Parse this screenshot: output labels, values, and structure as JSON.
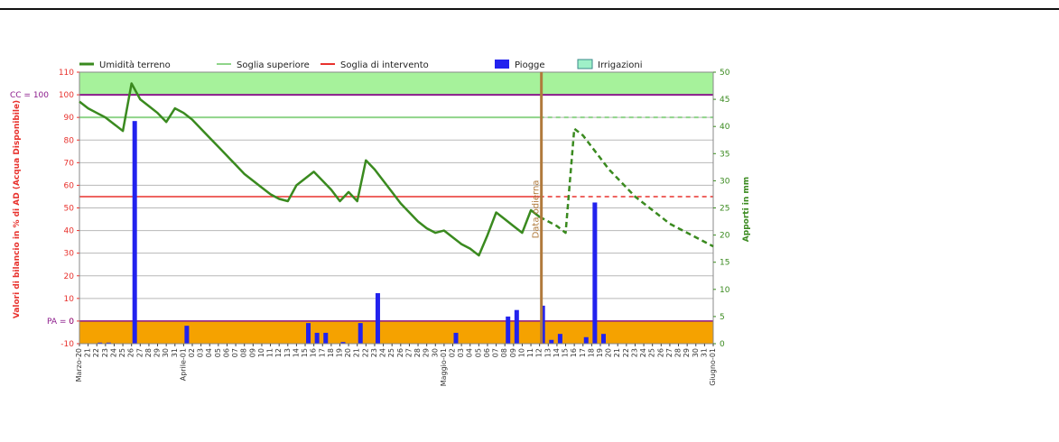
{
  "chart_data": {
    "type": "bar+line",
    "legend": {
      "placement": "top",
      "items": [
        {
          "label": "Umidità terreno",
          "color": "#3a8a1f",
          "kind": "line"
        },
        {
          "label": "Soglia superiore",
          "color": "#8fd48a",
          "kind": "line"
        },
        {
          "label": "Soglia di intervento",
          "color": "#e8322d",
          "kind": "line"
        },
        {
          "label": "Piogge",
          "color": "#2222ee",
          "kind": "box"
        },
        {
          "label": "Irrigazioni",
          "color": "#9ff0c8",
          "kind": "box"
        }
      ]
    },
    "ylabel": "Valori di bilancio in % di AD (Acqua Disponibile)",
    "y2label": "Apporti in mm",
    "ylim": [
      -10,
      110
    ],
    "y2lim": [
      0,
      50
    ],
    "yticks": [
      "-10",
      "0",
      "10",
      "20",
      "30",
      "40",
      "50",
      "60",
      "70",
      "80",
      "90",
      "100",
      "110"
    ],
    "y2ticks": [
      "0",
      "5",
      "10",
      "15",
      "20",
      "25",
      "30",
      "35",
      "40",
      "45",
      "50"
    ],
    "cc_label": "CC = 100",
    "pa_label": "PA = 0",
    "cc_value": 100,
    "pa_value": 0,
    "soglia_superiore": 90,
    "soglia_intervento": 55,
    "today_label": "Data odierna",
    "today_index": 53,
    "end_index": 73,
    "x_labels": [
      "Marzo-20",
      "21",
      "22",
      "23",
      "24",
      "25",
      "26",
      "27",
      "28",
      "29",
      "30",
      "31",
      "Aprile-01",
      "02",
      "03",
      "04",
      "05",
      "06",
      "07",
      "08",
      "09",
      "10",
      "11",
      "12",
      "13",
      "14",
      "15",
      "16",
      "17",
      "18",
      "19",
      "20",
      "21",
      "22",
      "23",
      "24",
      "25",
      "26",
      "27",
      "28",
      "29",
      "30",
      "Maggio-01",
      "02",
      "03",
      "04",
      "05",
      "06",
      "07",
      "08",
      "09",
      "10",
      "11",
      "12",
      "13",
      "14",
      "15",
      "16",
      "17",
      "18",
      "19",
      "20",
      "21",
      "22",
      "23",
      "24",
      "25",
      "26",
      "27",
      "28",
      "29",
      "30",
      "31",
      "Giugno-01"
    ],
    "x_label_step": 1,
    "zone_colors": {
      "upper": "#a6f29b",
      "lower": "#f5a200",
      "cc_line": "#8b1a8b",
      "pa_line": "#8b1a8b",
      "today_line": "#b07a3c",
      "axis_left": "#e8322d",
      "axis_right": "#3a8a1f"
    },
    "series": [
      {
        "name": "Umidità terreno",
        "type": "line",
        "points": [
          [
            0,
            97
          ],
          [
            1,
            94
          ],
          [
            2,
            92
          ],
          [
            3,
            90
          ],
          [
            4,
            87
          ],
          [
            5,
            84
          ],
          [
            6,
            105
          ],
          [
            7,
            98
          ],
          [
            8,
            95
          ],
          [
            9,
            92
          ],
          [
            10,
            88
          ],
          [
            11,
            94
          ],
          [
            12,
            92
          ],
          [
            13,
            89
          ],
          [
            14,
            85
          ],
          [
            15,
            81
          ],
          [
            16,
            77
          ],
          [
            17,
            73
          ],
          [
            18,
            69
          ],
          [
            19,
            65
          ],
          [
            20,
            62
          ],
          [
            21,
            59
          ],
          [
            22,
            56
          ],
          [
            23,
            54
          ],
          [
            24,
            53
          ],
          [
            25,
            60
          ],
          [
            26,
            63
          ],
          [
            27,
            66
          ],
          [
            28,
            62
          ],
          [
            29,
            58
          ],
          [
            30,
            53
          ],
          [
            31,
            57
          ],
          [
            32,
            53
          ],
          [
            33,
            71
          ],
          [
            34,
            67
          ],
          [
            35,
            62
          ],
          [
            36,
            57
          ],
          [
            37,
            52
          ],
          [
            38,
            48
          ],
          [
            39,
            44
          ],
          [
            40,
            41
          ],
          [
            41,
            39
          ],
          [
            42,
            40
          ],
          [
            43,
            37
          ],
          [
            44,
            34
          ],
          [
            45,
            32
          ],
          [
            46,
            29
          ],
          [
            47,
            38
          ],
          [
            48,
            48
          ],
          [
            49,
            45
          ],
          [
            50,
            42
          ],
          [
            51,
            39
          ],
          [
            52,
            49
          ],
          [
            53,
            46
          ]
        ]
      },
      {
        "name": "Umidità terreno (previsione)",
        "type": "line",
        "dashed": true,
        "points": [
          [
            53,
            46
          ],
          [
            54,
            44
          ],
          [
            55,
            42
          ],
          [
            56,
            39
          ],
          [
            57,
            85
          ],
          [
            58,
            82
          ],
          [
            59,
            77
          ],
          [
            60,
            72
          ],
          [
            61,
            67
          ],
          [
            62,
            63
          ],
          [
            63,
            59
          ],
          [
            64,
            55
          ],
          [
            65,
            52
          ],
          [
            66,
            49
          ],
          [
            67,
            46
          ],
          [
            68,
            43
          ],
          [
            69,
            41
          ],
          [
            70,
            39
          ],
          [
            71,
            37
          ],
          [
            72,
            35
          ],
          [
            73,
            33
          ]
        ]
      },
      {
        "name": "Piogge",
        "type": "bar",
        "axis": "y2",
        "points": [
          [
            2,
            0.2
          ],
          [
            3,
            0.2
          ],
          [
            6,
            41
          ],
          [
            12,
            3.3
          ],
          [
            26,
            3.8
          ],
          [
            27,
            2
          ],
          [
            28,
            2
          ],
          [
            30,
            0.3
          ],
          [
            32,
            3.8
          ],
          [
            34,
            9.3
          ],
          [
            43,
            2
          ],
          [
            49,
            5
          ],
          [
            50,
            6.2
          ],
          [
            53,
            7
          ],
          [
            54,
            0.7
          ],
          [
            55,
            1.8
          ],
          [
            58,
            1.2
          ],
          [
            59,
            26
          ],
          [
            60,
            1.8
          ]
        ]
      }
    ]
  }
}
